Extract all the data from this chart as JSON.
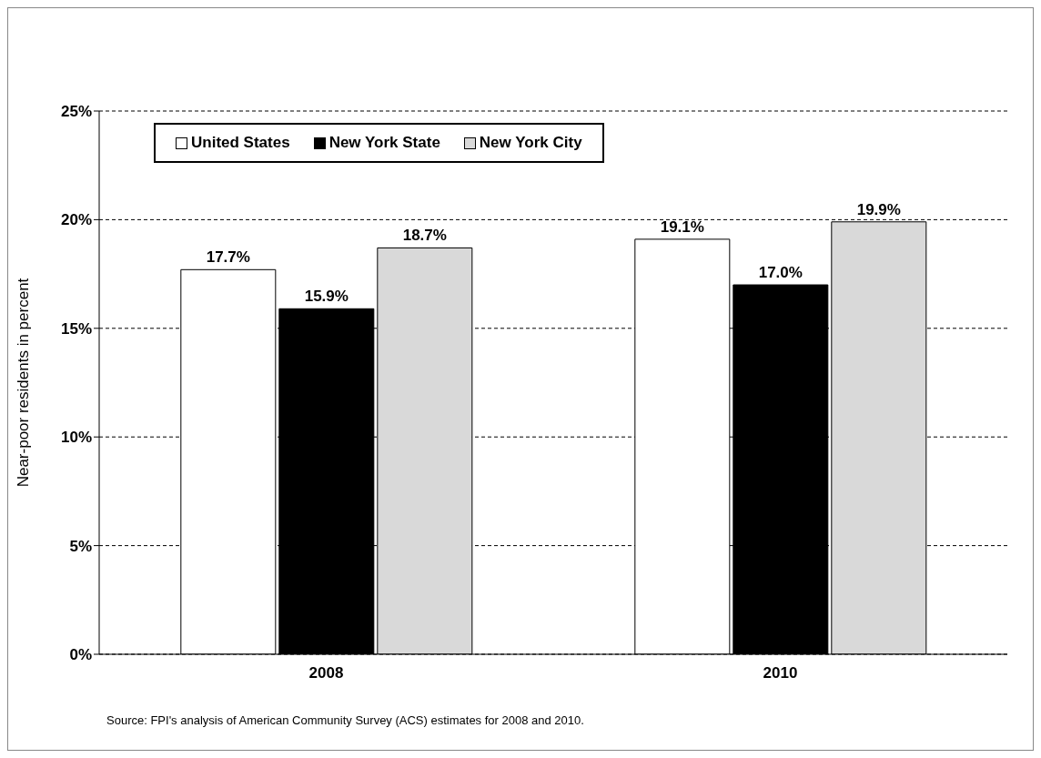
{
  "chart_data": {
    "type": "bar",
    "categories": [
      "2008",
      "2010"
    ],
    "series": [
      {
        "name": "United States",
        "color": "#ffffff",
        "values": [
          17.7,
          19.1
        ],
        "value_labels": [
          "17.7%",
          "19.1%"
        ]
      },
      {
        "name": "New York State",
        "color": "#000000",
        "values": [
          15.9,
          17.0
        ],
        "value_labels": [
          "15.9%",
          "17.0%"
        ]
      },
      {
        "name": "New York City",
        "color": "#d9d9d9",
        "values": [
          18.7,
          19.9
        ],
        "value_labels": [
          "18.7%",
          "19.9%"
        ]
      }
    ],
    "ylabel": "Near-poor residents in percent",
    "ylim": [
      0,
      25
    ],
    "yticks": [
      {
        "value": 0,
        "label": "0%"
      },
      {
        "value": 5,
        "label": "5%"
      },
      {
        "value": 10,
        "label": "10%"
      },
      {
        "value": 15,
        "label": "15%"
      },
      {
        "value": 20,
        "label": "20%"
      },
      {
        "value": 25,
        "label": "25%"
      }
    ],
    "grid": "y",
    "legend": "top left",
    "annotations": [
      "Source: FPI's analysis of American Community Survey (ACS) estimates for 2008 and 2010."
    ]
  }
}
